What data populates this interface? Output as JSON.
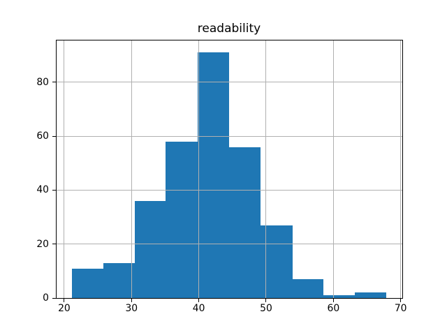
{
  "figure": {
    "background": "#ffffff"
  },
  "chart_data": {
    "type": "bar",
    "subtype": "histogram",
    "title": "readability",
    "xlabel": "",
    "ylabel": "",
    "bin_edges": [
      21.1,
      25.8,
      30.5,
      35.1,
      39.8,
      44.5,
      49.2,
      53.9,
      58.5,
      63.2,
      67.9
    ],
    "counts": [
      11,
      13,
      36,
      58,
      91,
      56,
      27,
      7,
      1,
      2
    ],
    "xticks": [
      20,
      30,
      40,
      50,
      60,
      70
    ],
    "yticks": [
      0,
      20,
      40,
      60,
      80
    ],
    "xlim": [
      18.76,
      70.24
    ],
    "ylim": [
      0,
      95.55
    ],
    "grid": true,
    "grid_above_bars": true,
    "legend": false,
    "colors": {
      "bar_fill": "#1f77b4",
      "grid": "#b0b0b0",
      "spine": "#000000",
      "text": "#000000"
    }
  }
}
